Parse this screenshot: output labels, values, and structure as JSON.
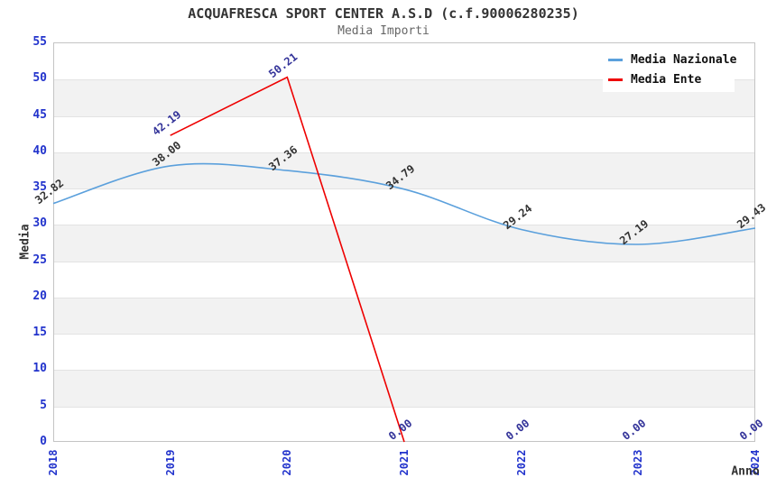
{
  "chart_data": {
    "type": "line",
    "title": "ACQUAFRESCA SPORT CENTER A.S.D (c.f.90006280235)",
    "subtitle": "Media Importi",
    "xlabel": "Anno",
    "ylabel": "Media",
    "categories": [
      "2018",
      "2019",
      "2020",
      "2021",
      "2022",
      "2023",
      "2024"
    ],
    "ylim": [
      0,
      55
    ],
    "ytick_step": 5,
    "grid": "horizontal-stripes",
    "legend_position": "top-right",
    "tick_label_color": "#2233cc",
    "stripe_color": "#f2f2f2",
    "gridline_color": "#e3e3e3",
    "axis_border_color": "#c4c4c4",
    "series": [
      {
        "name": "Media Nazionale",
        "color": "#5ba0dc",
        "label_color": "#333333",
        "smooth": true,
        "values": [
          32.82,
          38.0,
          37.36,
          34.79,
          29.24,
          27.19,
          29.43
        ]
      },
      {
        "name": "Media Ente",
        "color": "#ee0000",
        "label_color": "#333399",
        "smooth": false,
        "values": [
          null,
          42.19,
          50.21,
          0.0,
          0.0,
          0.0,
          0.0
        ],
        "line_start_index": 1,
        "line_end_index": 3
      }
    ]
  }
}
